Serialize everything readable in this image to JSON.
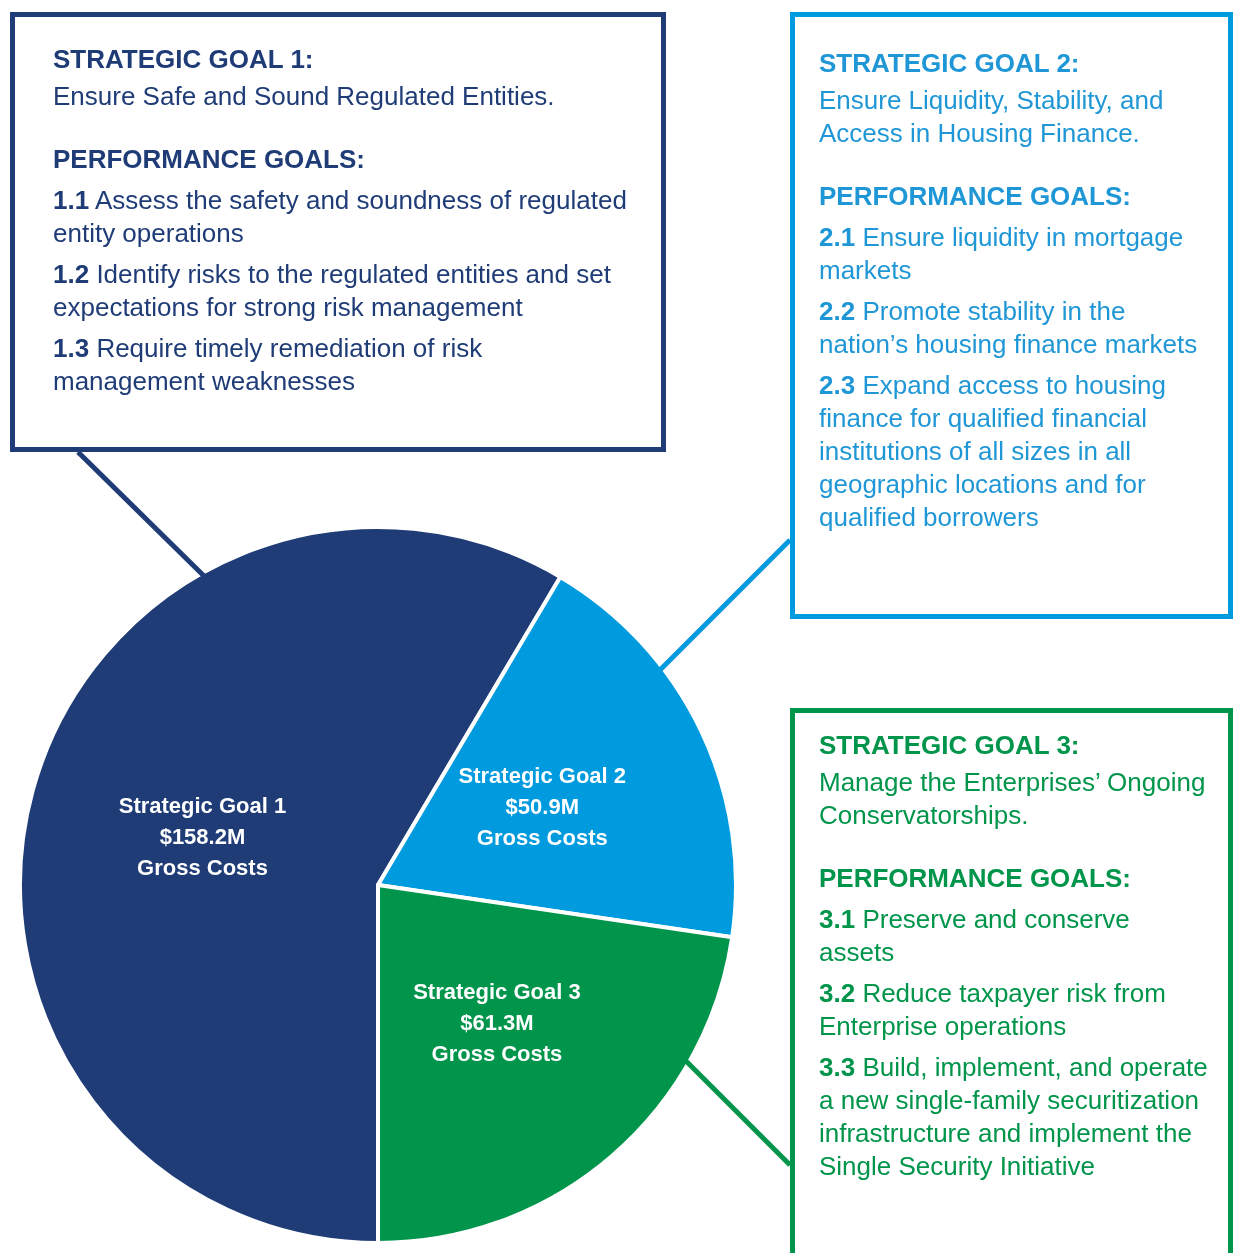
{
  "chart_data": {
    "type": "pie",
    "categories": [
      "Strategic Goal 1",
      "Strategic Goal 2",
      "Strategic Goal 3"
    ],
    "values": [
      158.2,
      50.9,
      61.3
    ],
    "colors": [
      "#1f3c77",
      "#009ade",
      "#00954a"
    ],
    "value_labels": [
      "$158.2M\nGross Costs",
      "$50.9M\nGross Costs",
      "$61.3M\nGross Costs"
    ],
    "annotations": [
      "STRATEGIC GOAL 1:\nEnsure Safe and Sound Regulated Entities.\nPERFORMANCE GOALS:\n1.1 Assess the safety and soundness of regulated entity operations\n1.2 Identify risks to the regulated entities and set expectations for strong risk management\n1.3 Require timely remediation of risk management weaknesses",
      "STRATEGIC GOAL 2:\nEnsure Liquidity, Stability, and Access in Housing Finance.\nPERFORMANCE GOALS:\n2.1 Ensure liquidity in mortgage markets\n2.2 Promote stability in the nation’s housing finance markets\n2.3 Expand access to housing finance for qualified financial institutions of all sizes in all geographic locations and for qualified borrowers",
      "STRATEGIC GOAL 3:\nManage the Enterprises’ Ongoing Conservatorships.\nPERFORMANCE GOALS:\n3.1 Preserve and conserve assets\n3.2 Reduce taxpayer risk from Enterprise operations\n3.3 Build, implement, and operate a new single-family securitization infrastructure and implement the Single Security Initiative"
    ]
  }
}
